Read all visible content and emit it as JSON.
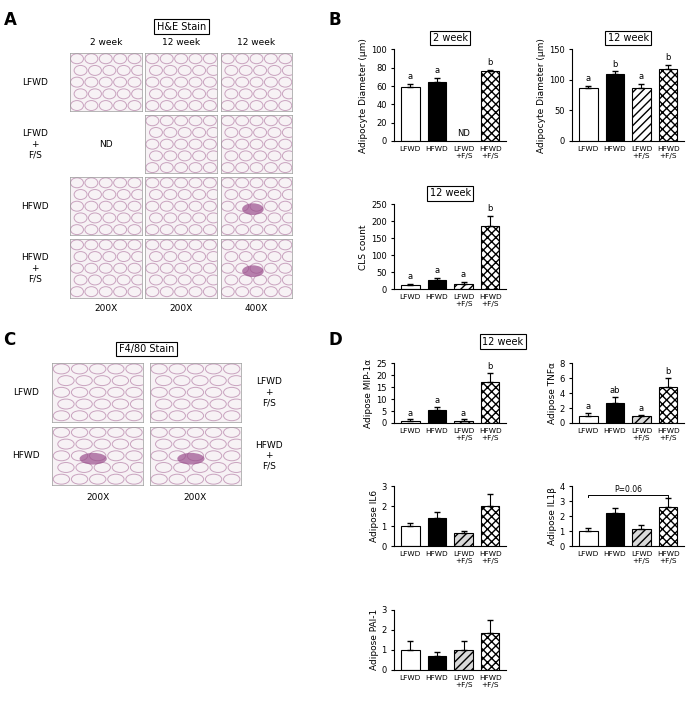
{
  "panel_labels": [
    "A",
    "B",
    "C",
    "D"
  ],
  "panel_A": {
    "header": "H&E Stain",
    "columns": [
      "2 week",
      "12 week",
      "12 week"
    ],
    "rows": [
      "LFWD",
      "LFWD\n+\nF/S",
      "HFWD",
      "HFWD\n+\nF/S"
    ],
    "footers": [
      "200X",
      "200X",
      "400X"
    ],
    "empty_cells": [
      {
        "row": 1,
        "col": 0,
        "text": "ND"
      }
    ]
  },
  "panel_C": {
    "header": "F4/80 Stain",
    "left_rows": [
      "LFWD",
      "HFWD"
    ],
    "right_rows": [
      "LFWD\n+\nF/S",
      "HFWD\n+\nF/S"
    ],
    "footers": [
      "200X",
      "200X"
    ]
  },
  "panel_D_title": "12 week",
  "chart_data": [
    {
      "type": "bar",
      "panel": "B",
      "title": "2 week",
      "ylabel": "Adipocyte Diameter (µm)",
      "categories": [
        "LFWD",
        "HFWD",
        "LFWD\n+F/S",
        "HFWD\n+F/S"
      ],
      "values": [
        59,
        64,
        null,
        76
      ],
      "errors": [
        3,
        5,
        null,
        2
      ],
      "colors": [
        "#ffffff",
        "#000000",
        "#ffffff",
        "#ffffff"
      ],
      "annotations": [
        "a",
        "a",
        "ND",
        "b"
      ],
      "ylim": [
        0,
        100
      ],
      "yticks": [
        0,
        20,
        40,
        60,
        80,
        100
      ]
    },
    {
      "type": "bar",
      "panel": "B",
      "title": "12 week",
      "ylabel": "Adipocyte Diameter (µm)",
      "categories": [
        "LFWD",
        "HFWD",
        "LFWD\n+F/S",
        "HFWD\n+F/S"
      ],
      "values": [
        86,
        110,
        87,
        118
      ],
      "errors": [
        4,
        4,
        6,
        6
      ],
      "colors": [
        "#ffffff",
        "#000000",
        "#ffffff",
        "#ffffff"
      ],
      "annotations": [
        "a",
        "b",
        "a",
        "b"
      ],
      "ylim": [
        0,
        150
      ],
      "yticks": [
        0,
        50,
        100,
        150
      ]
    },
    {
      "type": "bar",
      "panel": "B",
      "title": "12 week",
      "ylabel": "CLS count",
      "categories": [
        "LFWD",
        "HFWD",
        "LFWD\n+F/S",
        "HFWD\n+F/S"
      ],
      "values": [
        12,
        28,
        16,
        185
      ],
      "errors": [
        3,
        6,
        5,
        32
      ],
      "colors": [
        "#ffffff",
        "#000000",
        "#ffffff",
        "#ffffff"
      ],
      "annotations": [
        "a",
        "a",
        "a",
        "b"
      ],
      "ylim": [
        0,
        250
      ],
      "yticks": [
        0,
        50,
        100,
        150,
        200,
        250
      ]
    },
    {
      "type": "bar",
      "panel": "D",
      "title": null,
      "ylabel": "Adipose MIP-1α",
      "categories": [
        "LFWD",
        "HFWD",
        "LFWD\n+F/S",
        "HFWD\n+F/S"
      ],
      "values": [
        1,
        5.5,
        1,
        17
      ],
      "errors": [
        0.5,
        1.2,
        0.5,
        4
      ],
      "colors": [
        "#ffffff",
        "#000000",
        "#d9d9d9",
        "#ffffff"
      ],
      "annotations": [
        "a",
        "a",
        "a",
        "b"
      ],
      "ylim": [
        0,
        25
      ],
      "yticks": [
        0,
        5,
        10,
        15,
        20,
        25
      ]
    },
    {
      "type": "bar",
      "panel": "D",
      "title": null,
      "ylabel": "Adipose TNFα",
      "categories": [
        "LFWD",
        "HFWD",
        "LFWD\n+F/S",
        "HFWD\n+F/S"
      ],
      "values": [
        1,
        2.7,
        0.9,
        4.8
      ],
      "errors": [
        0.3,
        0.8,
        0.2,
        1.2
      ],
      "colors": [
        "#ffffff",
        "#000000",
        "#d9d9d9",
        "#ffffff"
      ],
      "annotations": [
        "a",
        "ab",
        "a",
        "b"
      ],
      "ylim": [
        0,
        8
      ],
      "yticks": [
        0,
        2,
        4,
        6,
        8
      ]
    },
    {
      "type": "bar",
      "panel": "D",
      "title": null,
      "ylabel": "Adipose IL6",
      "categories": [
        "LFWD",
        "HFWD",
        "LFWD\n+F/S",
        "HFWD\n+F/S"
      ],
      "values": [
        1,
        1.4,
        0.65,
        2.0
      ],
      "errors": [
        0.15,
        0.3,
        0.1,
        0.6
      ],
      "colors": [
        "#ffffff",
        "#000000",
        "#d9d9d9",
        "#ffffff"
      ],
      "ylim": [
        0,
        3
      ],
      "yticks": [
        0,
        1,
        2,
        3
      ]
    },
    {
      "type": "bar",
      "panel": "D",
      "title": null,
      "ylabel": "Adipose IL1β",
      "categories": [
        "LFWD",
        "HFWD",
        "LFWD\n+F/S",
        "HFWD\n+F/S"
      ],
      "values": [
        1,
        2.2,
        1.15,
        2.6
      ],
      "errors": [
        0.2,
        0.35,
        0.25,
        0.6
      ],
      "colors": [
        "#ffffff",
        "#000000",
        "#d9d9d9",
        "#ffffff"
      ],
      "comparison": {
        "between": [
          0,
          3
        ],
        "label": "P=0.06"
      },
      "ylim": [
        0,
        4
      ],
      "yticks": [
        0,
        1,
        2,
        3,
        4
      ]
    },
    {
      "type": "bar",
      "panel": "D",
      "title": null,
      "ylabel": "Adipose PAI-1",
      "categories": [
        "LFWD",
        "HFWD",
        "LFWD\n+F/S",
        "HFWD\n+F/S"
      ],
      "values": [
        1,
        0.7,
        1,
        1.85
      ],
      "errors": [
        0.45,
        0.2,
        0.45,
        0.65
      ],
      "colors": [
        "#ffffff",
        "#000000",
        "#d9d9d9",
        "#ffffff"
      ],
      "ylim": [
        0,
        3
      ],
      "yticks": [
        0,
        1,
        2,
        3
      ]
    }
  ]
}
